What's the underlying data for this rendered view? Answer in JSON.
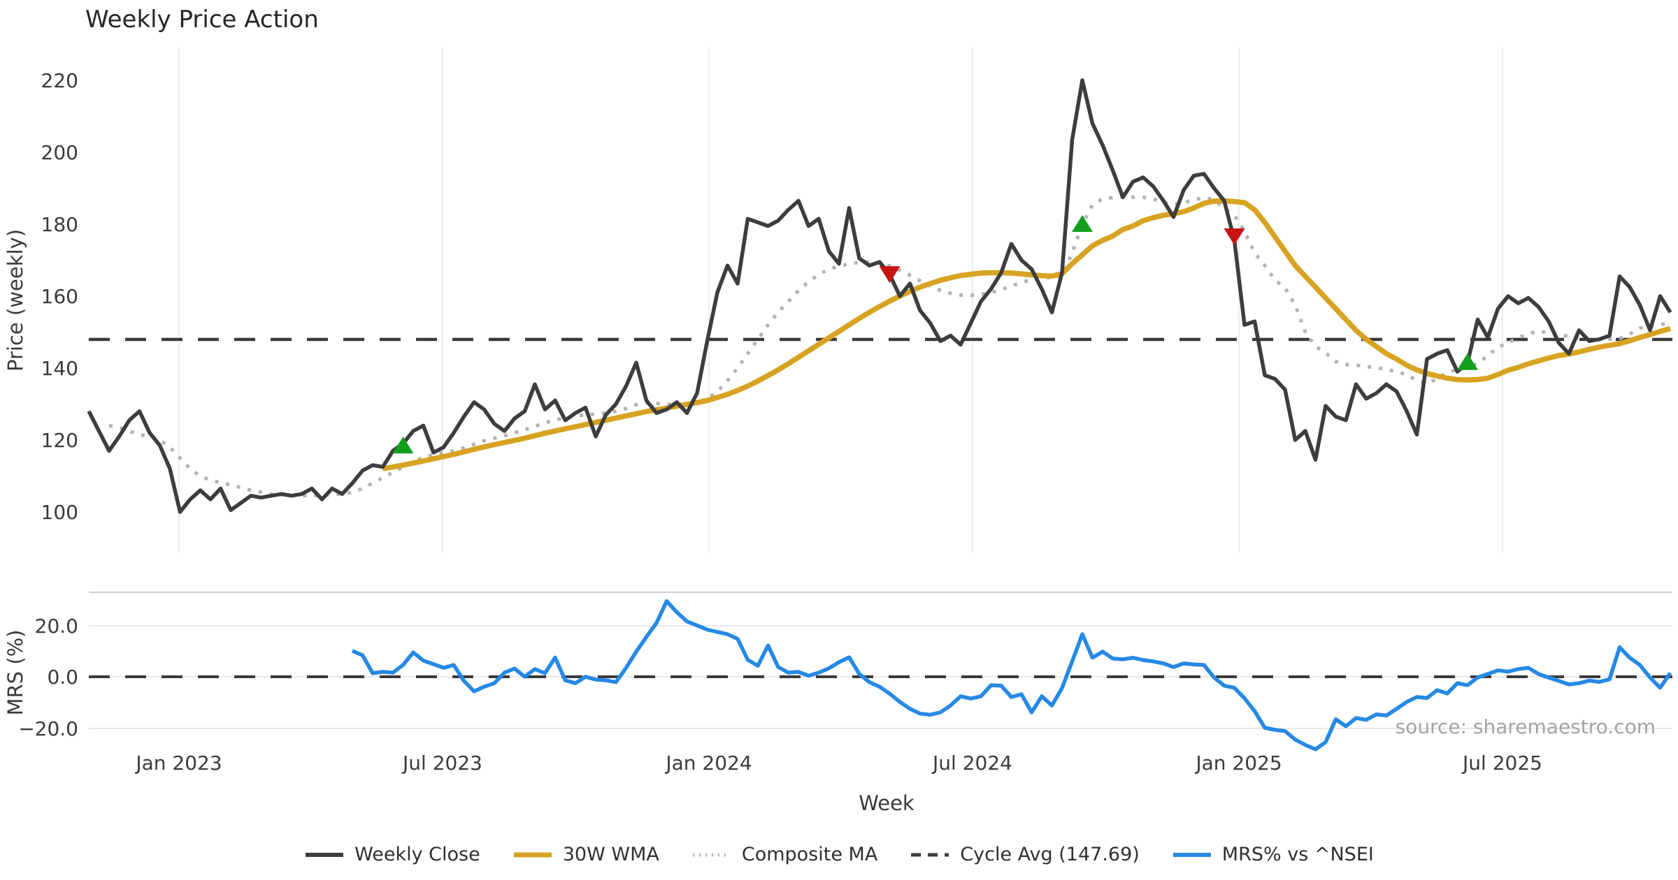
{
  "title": "Weekly Price Action",
  "source_note": "source: sharemaestro.com",
  "axes": {
    "price_label": "Price (weekly)",
    "mrs_label": "MRS (%)",
    "x_label": "Week",
    "price_ticks": [
      "220",
      "200",
      "180",
      "160",
      "140",
      "120",
      "100"
    ],
    "mrs_ticks": [
      "20.0",
      "0.0",
      "−20.0"
    ],
    "x_ticks": [
      "Jan 2023",
      "Jul 2023",
      "Jan 2024",
      "Jul 2024",
      "Jan 2025",
      "Jul 2025"
    ]
  },
  "legend": [
    {
      "label": "Weekly Close",
      "style": "solid",
      "color": "#3d3d3d"
    },
    {
      "label": "30W WMA",
      "style": "solid",
      "color": "#d7a321"
    },
    {
      "label": "Composite MA",
      "style": "dotted",
      "color": "#b3b3b3"
    },
    {
      "label": "Cycle Avg (147.69)",
      "style": "dashed",
      "color": "#3d3d3d"
    },
    {
      "label": "MRS% vs ^NSEI",
      "style": "solid",
      "color": "#2589e5"
    }
  ],
  "colors": {
    "weekly_close": "#3d3d3d",
    "wma_30w": "#d7a321",
    "composite_ma": "#b3b3b3",
    "cycle_avg": "#3a3a3a",
    "mrs": "#2589e5",
    "buy_marker": "#149e1e",
    "sell_marker": "#c41414",
    "gridline": "#ededed",
    "mrs_gridline": "#e8e8e8",
    "mrs_panel_border": "#cfcfcf"
  },
  "chart_data": {
    "type": "line",
    "title": "Weekly Price Action",
    "xlabel": "Week",
    "ylabel_top": "Price (weekly)",
    "ylabel_bottom": "MRS (%)",
    "freq": "weekly",
    "start_week": "2022-11-07",
    "x_tick_labels": [
      "Jan 2023",
      "Jul 2023",
      "Jan 2024",
      "Jul 2024",
      "Jan 2025",
      "Jul 2025"
    ],
    "price_ylim": [
      93,
      226
    ],
    "price_yticks": [
      100,
      120,
      140,
      160,
      180,
      200,
      220
    ],
    "mrs_ylim": [
      -33,
      33
    ],
    "mrs_yticks": [
      20.0,
      0.0,
      -20.0
    ],
    "cycle_avg": 147.69,
    "grid": "vertical-on-price-panel, horizontal-on-mrs-panel",
    "legend_position": "bottom-center",
    "series": [
      {
        "name": "Weekly Close",
        "values": [
          128,
          122.5,
          117,
          121,
          125.5,
          128,
          122,
          118.5,
          112,
          100,
          103.5,
          106,
          103.5,
          106.5,
          100.5,
          102.5,
          104.5,
          104,
          104.5,
          105,
          104.5,
          105,
          106.5,
          103.5,
          106.5,
          105,
          108,
          111.5,
          113,
          112.5,
          117,
          119,
          122.5,
          124,
          116.5,
          118,
          122,
          126.5,
          130.5,
          128.5,
          124.5,
          122.5,
          126,
          128,
          135.5,
          128.5,
          131,
          125.5,
          127.5,
          129,
          121,
          127,
          130,
          135,
          141.5,
          131,
          127.5,
          128.5,
          130.5,
          127.5,
          133,
          147.5,
          161,
          168.5,
          163.5,
          181.5,
          180.5,
          179.5,
          181,
          184,
          186.5,
          179.5,
          181.5,
          172.5,
          169,
          184.5,
          170.5,
          168.5,
          169.5,
          166,
          160,
          163.5,
          156,
          152.5,
          147.5,
          149,
          146.5,
          152.5,
          158.5,
          162,
          166.5,
          174.5,
          170,
          167.5,
          162,
          155.5,
          166.5,
          203.5,
          220,
          208,
          202,
          195,
          187.5,
          191.8,
          193,
          190.5,
          186.5,
          182,
          189.5,
          193.5,
          194,
          190,
          186.5,
          175.5,
          152,
          153,
          138,
          137,
          134,
          120,
          122.5,
          114.5,
          129.5,
          126.5,
          125.5,
          135.5,
          131.5,
          133,
          135.5,
          133.5,
          128,
          121.5,
          142.5,
          144,
          145,
          139,
          141.5,
          153.5,
          148.5,
          156.5,
          160,
          158,
          159.5,
          157,
          153,
          147,
          144,
          150.5,
          147.5,
          148,
          149,
          165.5,
          162.5,
          157.5,
          150.5,
          160,
          155.5
        ]
      },
      {
        "name": "30W WMA",
        "values": [
          null,
          null,
          null,
          null,
          null,
          null,
          null,
          null,
          null,
          null,
          null,
          null,
          null,
          null,
          null,
          null,
          null,
          null,
          null,
          null,
          null,
          null,
          null,
          null,
          null,
          null,
          null,
          null,
          null,
          112,
          112.5,
          113,
          113.6,
          114.2,
          114.8,
          115.4,
          116,
          116.7,
          117.4,
          118.1,
          118.7,
          119.3,
          119.9,
          120.5,
          121.2,
          121.9,
          122.5,
          123.1,
          123.7,
          124.3,
          124.9,
          125.5,
          126.1,
          126.7,
          127.3,
          127.9,
          128.4,
          128.9,
          129.4,
          129.9,
          130.4,
          131,
          131.8,
          132.7,
          133.8,
          135,
          136.4,
          137.9,
          139.5,
          141.2,
          143,
          144.8,
          146.6,
          148.4,
          150.2,
          152,
          153.8,
          155.5,
          157.1,
          158.6,
          160,
          161.3,
          162.5,
          163.5,
          164.4,
          165.1,
          165.7,
          166.1,
          166.4,
          166.5,
          166.5,
          166.4,
          166.2,
          165.9,
          165.7,
          165.6,
          166.2,
          169,
          171.5,
          174,
          175.5,
          176.7,
          178.5,
          179.5,
          181,
          181.8,
          182.5,
          182.9,
          183.5,
          184.5,
          185.8,
          186.4,
          186.5,
          186.3,
          186,
          184,
          180.5,
          176.5,
          172.5,
          168.5,
          165.5,
          162.5,
          159.5,
          156.5,
          153.5,
          150.5,
          148,
          146,
          144,
          142.5,
          140.8,
          139.5,
          138.5,
          137.8,
          137.2,
          136.8,
          136.7,
          136.8,
          137.2,
          138.2,
          139.4,
          140.2,
          141.2,
          142,
          142.8,
          143.5,
          143.9,
          144.5,
          145.2,
          145.8,
          146.3,
          146.8,
          147.6,
          148.5,
          149.3,
          150.2,
          151
        ]
      },
      {
        "name": "Composite MA",
        "values": [
          null,
          null,
          124,
          123.5,
          122.5,
          121.5,
          121,
          120,
          118,
          115,
          112,
          110,
          108.8,
          108.2,
          107.5,
          106.8,
          106,
          105.5,
          105,
          104.8,
          104.6,
          104.5,
          104.5,
          104.6,
          104.8,
          105,
          105.5,
          106.5,
          108,
          109.5,
          111,
          112.5,
          114,
          115.2,
          116,
          116.5,
          117,
          117.8,
          118.8,
          119.8,
          120.5,
          121.2,
          122,
          122.8,
          123.8,
          124.8,
          125.6,
          126.2,
          126.6,
          127,
          127.2,
          127.5,
          128,
          128.8,
          129.8,
          130.3,
          130.2,
          130,
          129.8,
          130,
          130.5,
          131.5,
          133.5,
          136.5,
          140,
          144,
          148,
          152,
          155.5,
          158.5,
          161.5,
          164,
          166,
          167.5,
          168.3,
          169,
          169.4,
          169.5,
          169.2,
          168.4,
          167.2,
          165.8,
          164.3,
          162.8,
          161.6,
          160.8,
          160.3,
          160.2,
          160.5,
          161,
          161.8,
          162.8,
          163.8,
          164.5,
          165,
          165.2,
          165.5,
          172,
          180,
          185.4,
          187,
          187.4,
          187.6,
          187.5,
          187.5,
          187,
          186,
          185.4,
          186,
          186.8,
          187.3,
          186.9,
          184.4,
          182.5,
          178,
          172,
          168.5,
          164.5,
          162.3,
          157.5,
          150,
          146,
          144.3,
          141.8,
          141,
          140.8,
          140.4,
          140.1,
          139.6,
          139,
          138.2,
          136.5,
          135.8,
          137,
          138.8,
          139.6,
          140.4,
          141.2,
          143.5,
          145.8,
          147,
          148.5,
          149.5,
          150.3,
          149.8,
          149.2,
          148.8,
          148.3,
          148,
          147.8,
          148,
          148.2,
          149.5,
          151.1,
          151.7,
          152.1,
          152.5
        ]
      },
      {
        "name": "MRS% vs ^NSEI",
        "panel": "bottom",
        "values": [
          null,
          null,
          null,
          null,
          null,
          null,
          null,
          null,
          null,
          null,
          null,
          null,
          null,
          null,
          null,
          null,
          null,
          null,
          null,
          null,
          null,
          null,
          null,
          null,
          null,
          null,
          10.1,
          8.4,
          1.4,
          1.9,
          1.6,
          4.6,
          9.5,
          6.3,
          4.9,
          3.5,
          4.6,
          -1.6,
          -5.7,
          -3.9,
          -2.5,
          1.6,
          3.2,
          0,
          3,
          1.4,
          7.5,
          -1.4,
          -2.5,
          0,
          -1.1,
          -1.4,
          -2.1,
          3.5,
          9.8,
          15.5,
          21,
          29.5,
          25.2,
          21.6,
          20,
          18.4,
          17.5,
          16.6,
          14.8,
          6.6,
          4.3,
          12.2,
          3.8,
          1.6,
          1.9,
          0.4,
          1.6,
          3.3,
          5.7,
          7.6,
          1.1,
          -2.1,
          -3.9,
          -6.6,
          -9.8,
          -12.5,
          -14.4,
          -14.8,
          -13.9,
          -11.2,
          -7.6,
          -8.5,
          -7.6,
          -3.3,
          -3.5,
          -7.9,
          -6.8,
          -13.9,
          -7.6,
          -11.2,
          -4.4,
          6,
          16.6,
          7.4,
          9.8,
          7.1,
          6.8,
          7.4,
          6.5,
          6,
          5.2,
          3.8,
          5.2,
          4.8,
          4.6,
          -0.3,
          -3.5,
          -4.3,
          -8.4,
          -13.4,
          -19.9,
          -20.7,
          -21.2,
          -24.5,
          -26.6,
          -28.3,
          -25.5,
          -16.6,
          -19.3,
          -16.1,
          -16.8,
          -14.7,
          -15.1,
          -12.5,
          -9.8,
          -7.9,
          -8.3,
          -5.2,
          -6.5,
          -2.5,
          -3.3,
          -0.3,
          1.1,
          2.5,
          2,
          3,
          3.5,
          1.1,
          -0.3,
          -1.6,
          -3,
          -2.5,
          -1.5,
          -2,
          -1,
          11.5,
          7.4,
          4.6,
          -0.3,
          -4.3,
          1.5
        ]
      }
    ],
    "markers": {
      "buy": [
        {
          "week": 31,
          "price": 118.6
        },
        {
          "week": 98,
          "price": 180.2
        },
        {
          "week": 136,
          "price": 141.8
        }
      ],
      "sell": [
        {
          "week": 79,
          "price": 166.0
        },
        {
          "week": 113,
          "price": 176.5
        }
      ]
    }
  }
}
